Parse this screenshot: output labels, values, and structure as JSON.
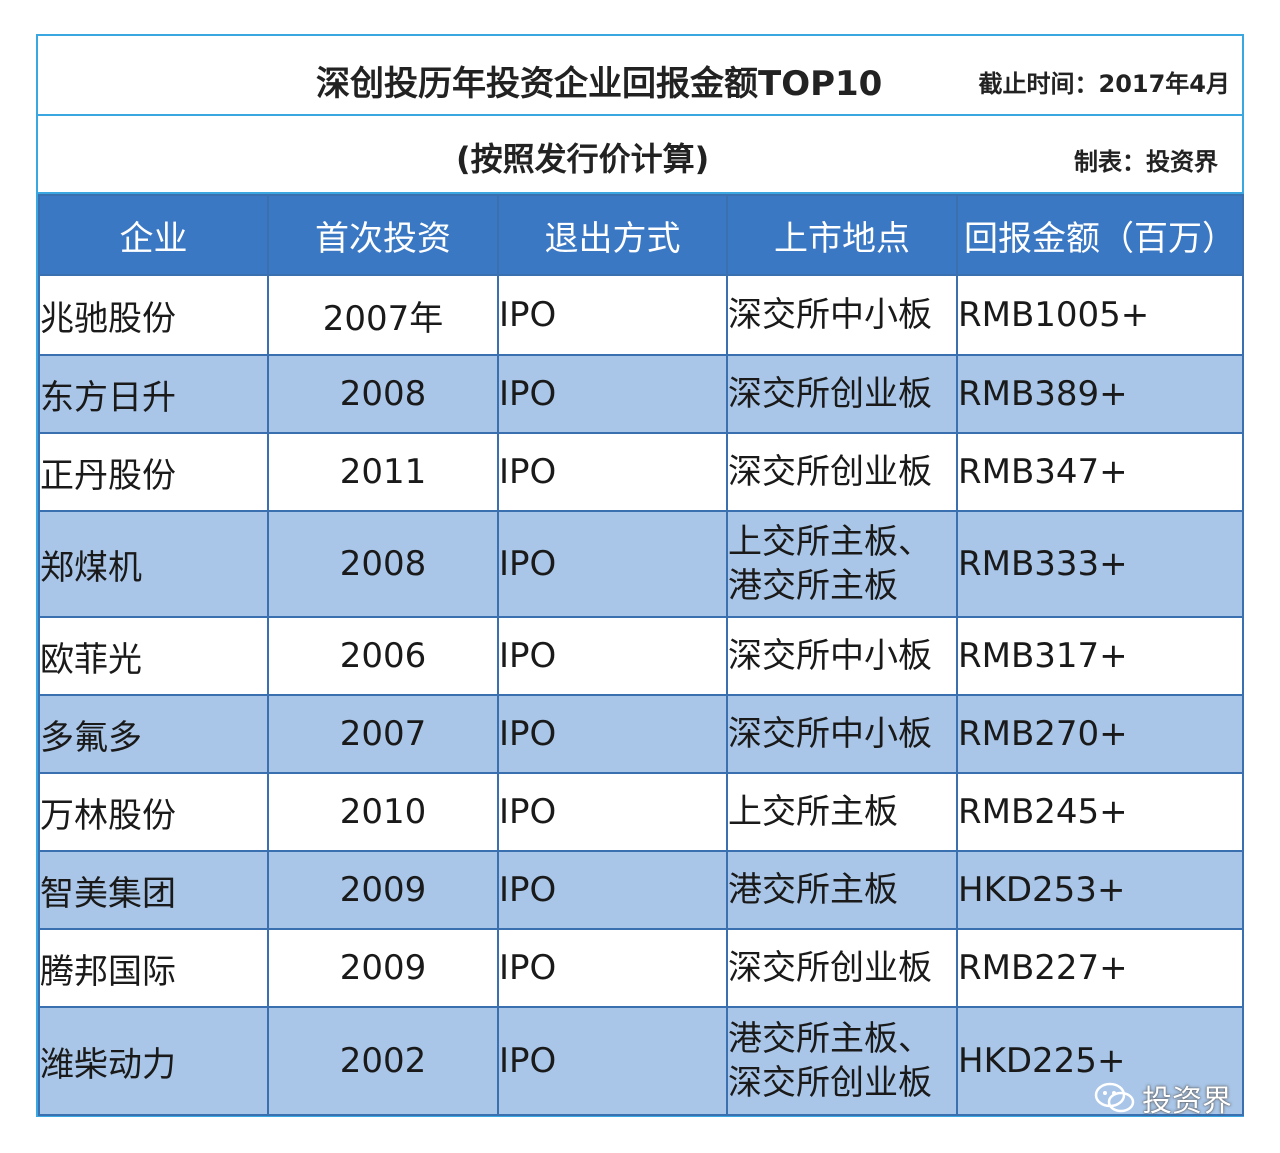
{
  "header": {
    "title": "深创投历年投资企业回报金额TOP10",
    "cutoff": "截止时间：2017年4月",
    "subtitle": "(按照发行价计算)",
    "maker": "制表：投资界"
  },
  "columns": [
    "企业",
    "首次投资",
    "退出方式",
    "上市地点",
    "回报金额（百万）"
  ],
  "rows": [
    {
      "name": "兆驰股份",
      "year": "2007年",
      "exit": "IPO",
      "place": "深交所中小板",
      "ret": "RMB1005+"
    },
    {
      "name": "东方日升",
      "year": "2008",
      "exit": "IPO",
      "place": "深交所创业板",
      "ret": "RMB389+"
    },
    {
      "name": "正丹股份",
      "year": "2011",
      "exit": "IPO",
      "place": "深交所创业板",
      "ret": "RMB347+"
    },
    {
      "name": "郑煤机",
      "year": "2008",
      "exit": "IPO",
      "place": "上交所主板、\n港交所主板",
      "ret": "RMB333+"
    },
    {
      "name": "欧菲光",
      "year": "2006",
      "exit": "IPO",
      "place": "深交所中小板",
      "ret": "RMB317+"
    },
    {
      "name": "多氟多",
      "year": "2007",
      "exit": "IPO",
      "place": "深交所中小板",
      "ret": "RMB270+"
    },
    {
      "name": "万林股份",
      "year": "2010",
      "exit": "IPO",
      "place": "上交所主板",
      "ret": "RMB245+"
    },
    {
      "name": "智美集团",
      "year": "2009",
      "exit": "IPO",
      "place": "港交所主板",
      "ret": "HKD253+"
    },
    {
      "name": "腾邦国际",
      "year": "2009",
      "exit": "IPO",
      "place": "深交所创业板",
      "ret": "RMB227+"
    },
    {
      "name": "潍柴动力",
      "year": "2002",
      "exit": "IPO",
      "place": "港交所主板、\n深交所创业板",
      "ret": "HKD225+"
    }
  ],
  "watermark": {
    "icon": "wechat-icon",
    "text": "投资界"
  },
  "colors": {
    "header_bg": "#3b78c4",
    "alt_row_bg": "#a9c6e8",
    "frame_border": "#3aa7e0"
  }
}
